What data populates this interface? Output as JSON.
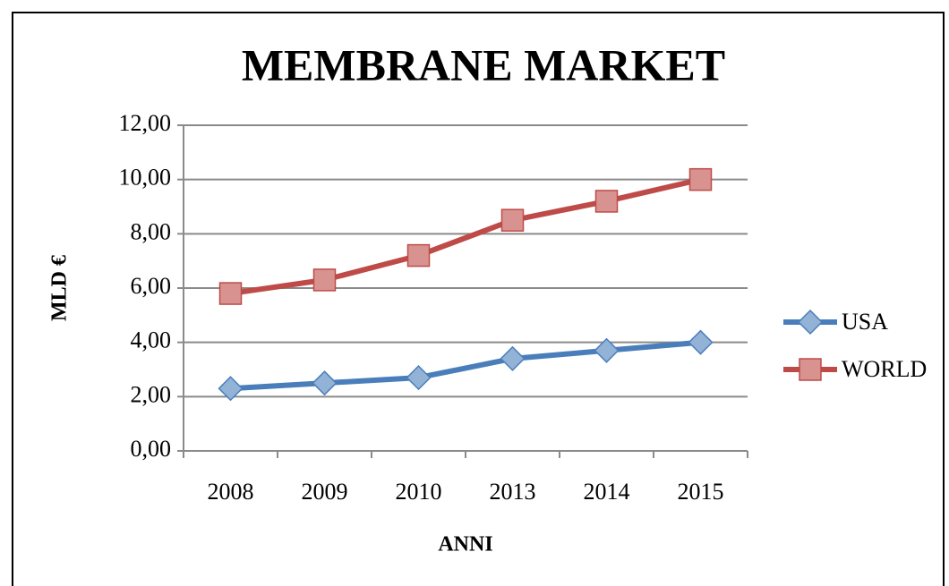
{
  "chart_data": {
    "type": "line",
    "title": "MEMBRANE  MARKET",
    "x_label": "ANNI",
    "y_label": "MLD €",
    "categories": [
      "2008",
      "2009",
      "2010",
      "2013",
      "2014",
      "2015"
    ],
    "series": [
      {
        "name": "USA",
        "color": "#4a7ebb",
        "marker": "diamond",
        "values": [
          2.3,
          2.5,
          2.7,
          3.4,
          3.7,
          4.0
        ]
      },
      {
        "name": "WORLD",
        "color": "#be4b48",
        "marker": "square",
        "values": [
          5.8,
          6.3,
          7.2,
          8.5,
          9.2,
          10.0
        ]
      }
    ],
    "ylim": [
      0,
      12
    ],
    "yticks": [
      {
        "value": 0,
        "label": "0,00"
      },
      {
        "value": 2,
        "label": "2,00"
      },
      {
        "value": 4,
        "label": "4,00"
      },
      {
        "value": 6,
        "label": "6,00"
      },
      {
        "value": 8,
        "label": "8,00"
      },
      {
        "value": 10,
        "label": "10,00"
      },
      {
        "value": 12,
        "label": "12,00"
      }
    ],
    "grid": true,
    "legend": "right"
  }
}
